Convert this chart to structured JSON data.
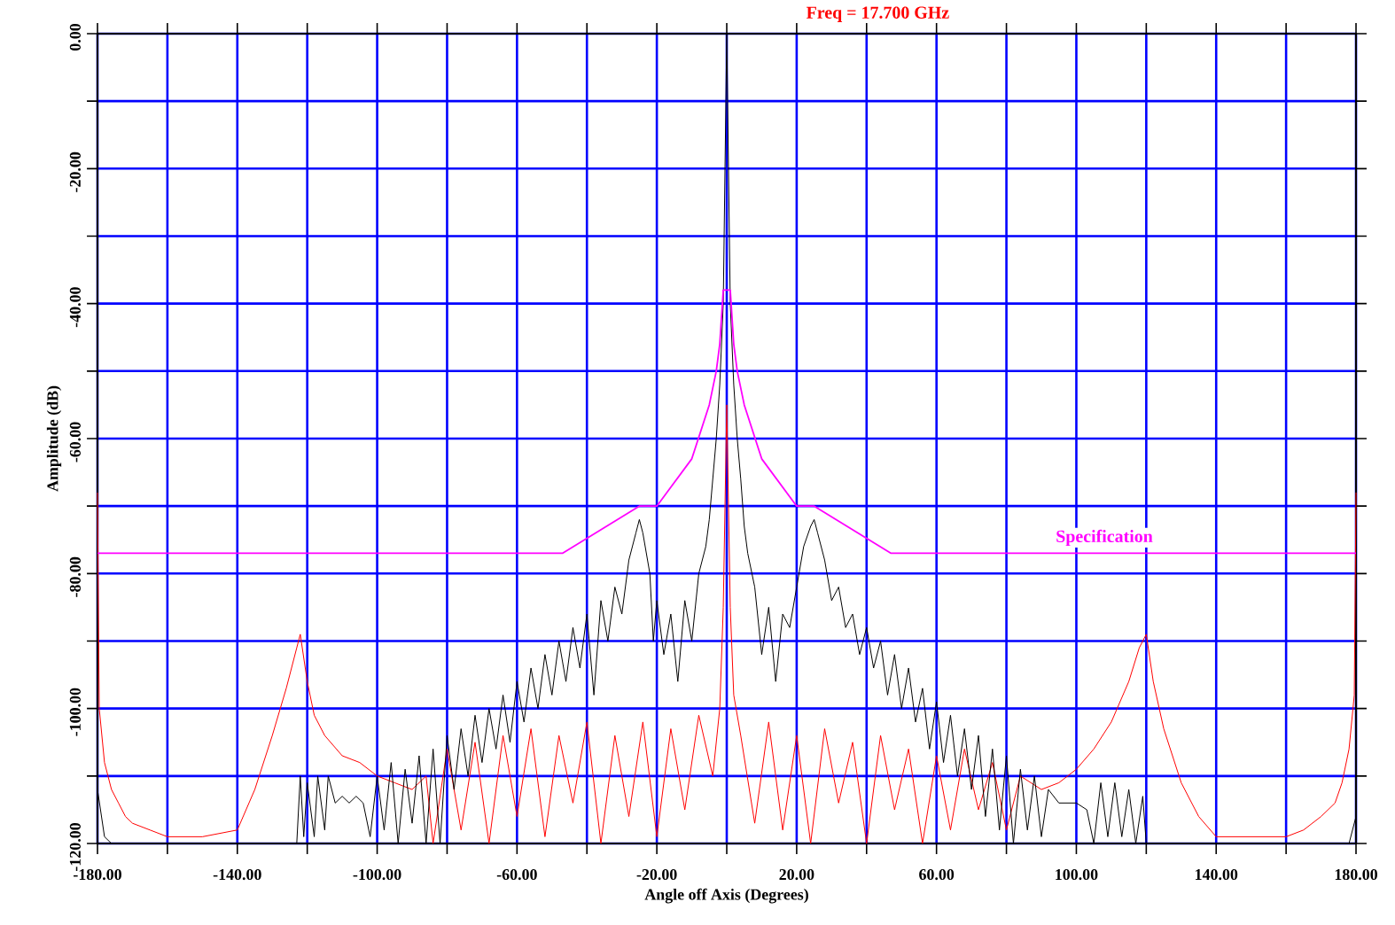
{
  "chart_data": {
    "type": "line",
    "title": "Freq = 17.700 GHz",
    "xlabel": "Angle off Axis  (Degrees)",
    "ylabel": "Amplitude  (dB)",
    "xlim": [
      -180,
      180
    ],
    "ylim": [
      -120,
      0
    ],
    "xticks": [
      {
        "value": -180,
        "label": "-180.00"
      },
      {
        "value": -160,
        "label": null
      },
      {
        "value": -140,
        "label": "-140.00"
      },
      {
        "value": -120,
        "label": null
      },
      {
        "value": -100,
        "label": "-100.00"
      },
      {
        "value": -80,
        "label": null
      },
      {
        "value": -60,
        "label": "-60.00"
      },
      {
        "value": -40,
        "label": null
      },
      {
        "value": -20,
        "label": "-20.00"
      },
      {
        "value": 0,
        "label": null
      },
      {
        "value": 20,
        "label": "20.00"
      },
      {
        "value": 40,
        "label": null
      },
      {
        "value": 60,
        "label": "60.00"
      },
      {
        "value": 80,
        "label": null
      },
      {
        "value": 100,
        "label": "100.00"
      },
      {
        "value": 120,
        "label": null
      },
      {
        "value": 140,
        "label": "140.00"
      },
      {
        "value": 160,
        "label": null
      },
      {
        "value": 180,
        "label": "180.00"
      }
    ],
    "yticks": [
      {
        "value": -120,
        "label": "-120.00"
      },
      {
        "value": -110,
        "label": null
      },
      {
        "value": -100,
        "label": "-100.00"
      },
      {
        "value": -90,
        "label": null
      },
      {
        "value": -80,
        "label": "-80.00"
      },
      {
        "value": -70,
        "label": null
      },
      {
        "value": -60,
        "label": "-60.00"
      },
      {
        "value": -50,
        "label": null
      },
      {
        "value": -40,
        "label": "-40.00"
      },
      {
        "value": -30,
        "label": null
      },
      {
        "value": -20,
        "label": "-20.00"
      },
      {
        "value": -10,
        "label": null
      },
      {
        "value": 0,
        "label": "0.00"
      }
    ],
    "grid": true,
    "series": [
      {
        "color": "#ff0000",
        "x": [
          -180,
          -179.5,
          -178,
          -176,
          -174,
          -172,
          -170,
          -165,
          -160,
          -150,
          -140,
          -135,
          -130,
          -126,
          -123,
          -122,
          -120,
          -118,
          -115,
          -110,
          -105,
          -100,
          -95,
          -90,
          -86,
          -84,
          -80,
          -76,
          -72,
          -68,
          -64,
          -60,
          -56,
          -52,
          -48,
          -44,
          -40,
          -36,
          -32,
          -28,
          -24,
          -20,
          -16,
          -12,
          -8,
          -4,
          -2,
          -1,
          0,
          1,
          2,
          4,
          8,
          12,
          16,
          20,
          24,
          28,
          32,
          36,
          40,
          44,
          48,
          52,
          56,
          60,
          64,
          68,
          72,
          76,
          80,
          84,
          90,
          95,
          100,
          105,
          110,
          115,
          118,
          120,
          122,
          125,
          130,
          135,
          140,
          150,
          160,
          165,
          170,
          174,
          176,
          178,
          179.5,
          180
        ],
        "values": [
          -68,
          -100,
          -108,
          -112,
          -114,
          -116,
          -117,
          -118,
          -119,
          -119,
          -118,
          -112,
          -104,
          -97,
          -91,
          -89,
          -96,
          -101,
          -104,
          -107,
          -108,
          -110,
          -111,
          -112,
          -110,
          -120,
          -106,
          -118,
          -105,
          -120,
          -104,
          -116,
          -103,
          -119,
          -104,
          -114,
          -102,
          -120,
          -104,
          -116,
          -102,
          -119,
          -103,
          -115,
          -101,
          -110,
          -100,
          -85,
          -55,
          -85,
          -98,
          -104,
          -117,
          -102,
          -118,
          -104,
          -120,
          -103,
          -114,
          -105,
          -120,
          -104,
          -115,
          -106,
          -120,
          -107,
          -118,
          -106,
          -115,
          -108,
          -118,
          -110,
          -112,
          -111,
          -109,
          -106,
          -102,
          -96,
          -91,
          -89,
          -96,
          -103,
          -111,
          -116,
          -119,
          -119,
          -119,
          -118,
          -116,
          -114,
          -111,
          -106,
          -98,
          -68
        ]
      },
      {
        "color": "#000000",
        "x": [
          -180,
          -178,
          -176,
          -170,
          -123,
          -122,
          -121,
          -120,
          -118,
          -117,
          -115,
          -114,
          -112,
          -110,
          -108,
          -106,
          -104,
          -102,
          -100,
          -98,
          -96,
          -94,
          -92,
          -90,
          -88,
          -86,
          -84,
          -82,
          -80,
          -78,
          -76,
          -74,
          -72,
          -70,
          -68,
          -66,
          -64,
          -62,
          -60,
          -58,
          -56,
          -54,
          -52,
          -50,
          -48,
          -46,
          -44,
          -42,
          -40,
          -38,
          -36,
          -34,
          -32,
          -30,
          -28,
          -26,
          -25,
          -24,
          -22,
          -21,
          -20,
          -18,
          -16,
          -14,
          -12,
          -10,
          -8,
          -6,
          -5,
          -4,
          -3,
          -2,
          -1,
          0,
          1,
          2,
          3,
          4,
          5,
          6,
          8,
          10,
          12,
          14,
          16,
          18,
          20,
          22,
          24,
          25,
          26,
          28,
          30,
          32,
          34,
          36,
          38,
          40,
          42,
          44,
          46,
          48,
          50,
          52,
          54,
          56,
          58,
          60,
          62,
          64,
          66,
          68,
          70,
          72,
          74,
          76,
          78,
          80,
          82,
          84,
          86,
          88,
          90,
          92,
          95,
          100,
          103,
          105,
          107,
          109,
          111,
          113,
          115,
          117,
          119,
          120,
          130,
          178,
          180
        ],
        "values": [
          -112,
          -119,
          -120,
          null,
          -120,
          -110,
          -119,
          -111,
          -119,
          -110,
          -118,
          -110,
          -114,
          -113,
          -114,
          -113,
          -114,
          -119,
          -110,
          -118,
          -108,
          -120,
          -109,
          -117,
          -107,
          -120,
          -106,
          -120,
          -104,
          -112,
          -103,
          -110,
          -101,
          -108,
          -100,
          -106,
          -98,
          -105,
          -96,
          -102,
          -94,
          -100,
          -92,
          -98,
          -90,
          -96,
          -88,
          -94,
          -86,
          -98,
          -84,
          -90,
          -82,
          -86,
          -78,
          -74,
          -72,
          -74,
          -80,
          -90,
          -84,
          -92,
          -86,
          -96,
          -84,
          -90,
          -80,
          -76,
          -72,
          -66,
          -60,
          -52,
          -40,
          0,
          -40,
          -52,
          -60,
          -66,
          -73,
          -77,
          -82,
          -92,
          -85,
          -96,
          -86,
          -88,
          -82,
          -76,
          -73,
          -72,
          -74,
          -78,
          -84,
          -82,
          -88,
          -86,
          -92,
          -88,
          -94,
          -90,
          -98,
          -92,
          -100,
          -94,
          -102,
          -97,
          -106,
          -99,
          -108,
          -101,
          -110,
          -103,
          -112,
          -104,
          -116,
          -106,
          -118,
          -107,
          -120,
          -109,
          -118,
          -110,
          -119,
          -112,
          -114,
          -114,
          -115,
          -120,
          -111,
          -119,
          -111,
          -119,
          -112,
          -120,
          -113,
          -120,
          null,
          -120,
          -116
        ]
      },
      {
        "name": "Specification",
        "color": "#ff00ff",
        "x": [
          -180,
          -47,
          -25,
          -20,
          -10,
          -5,
          -3,
          -2,
          -1,
          1,
          2,
          3,
          5,
          10,
          20,
          25,
          47,
          180
        ],
        "values": [
          -77,
          -77,
          -70,
          -70,
          -63,
          -55,
          -50,
          -46,
          -38,
          -38,
          -46,
          -50,
          -55,
          -63,
          -70,
          -70,
          -77,
          -77
        ]
      }
    ]
  }
}
